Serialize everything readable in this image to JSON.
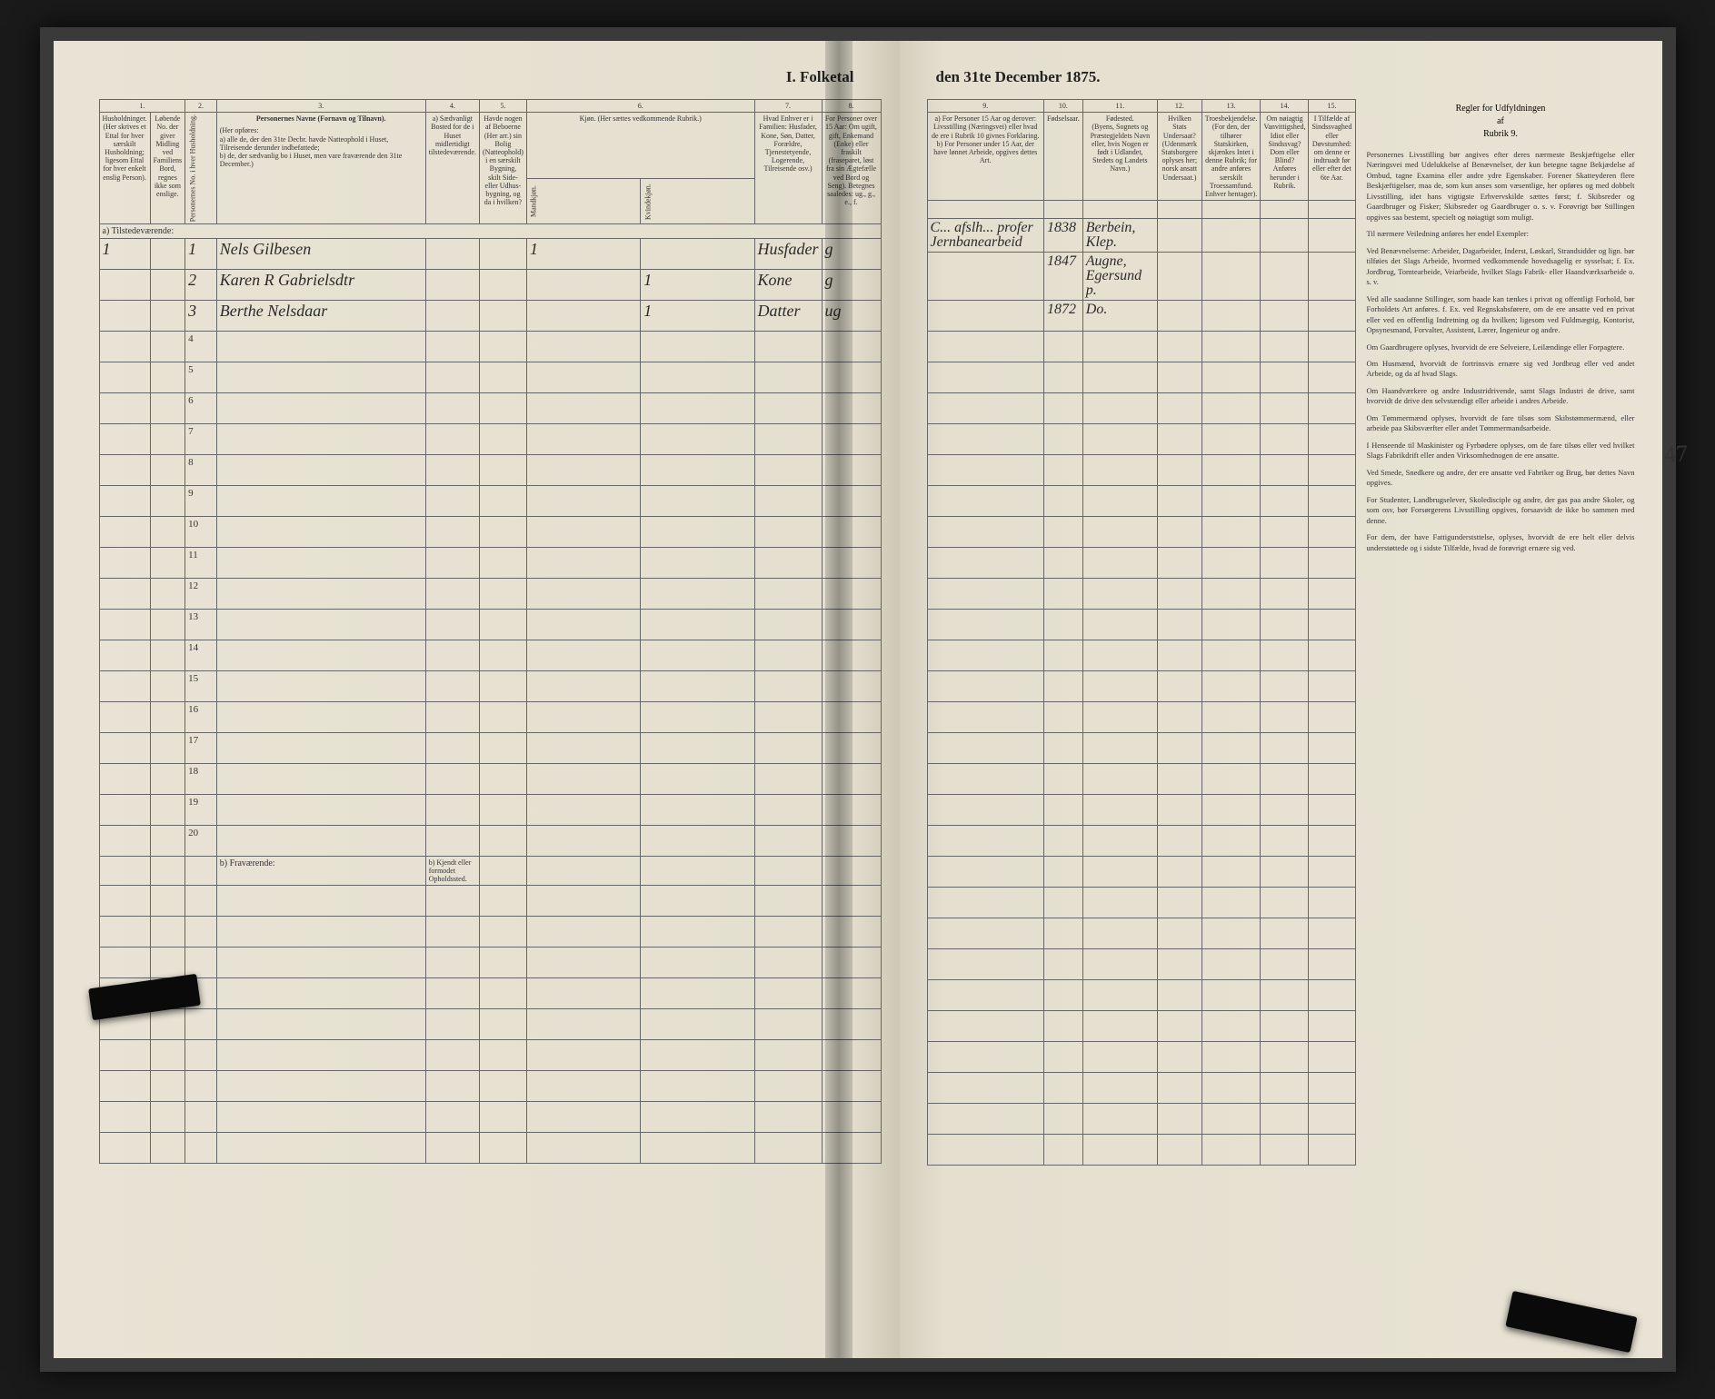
{
  "title_left": "I. Folketal",
  "title_right": "den 31te December 1875.",
  "side_page_number": "47",
  "left": {
    "col_numbers": [
      "1.",
      "2.",
      "3.",
      "4.",
      "5.",
      "6.",
      "7.",
      "8."
    ],
    "headers": {
      "c1": "Husholdninger. (Her skrives et Ettal for hver særskilt Husholdning; ligesom Ettal for hver enkelt enslig Person).",
      "c1b": "Løbende No. der giver Midling ved Familiens Bord, regnes ikke som enslige.",
      "c2": "Personernes No. i hver Husholdning.",
      "c3_title": "Personernes Navne (Fornavn og Tilnavn).",
      "c3_body": "(Her opføres:\na) alle de, der den 31te Decbr. havde Natteophold i Huset, Tilreisende derunder indbefattede;\nb) de, der sædvanlig bo i Huset, men vare fraværende den 31te December.)",
      "c4": "a) Sædvanligt Bosted for de i Huset midlertidigt tilstedeværende.",
      "c4b": "b) Kjendt eller formodet Opholdssted.",
      "c5": "Havde nogen af Beboerne (Her arr.) sin Bolig (Natteophold) i en særskilt Bygning, skilt Side- eller Udhus-bygning, og da i hvilken?",
      "c6": "Kjøn. (Her sættes vedkommende Rubrik.)",
      "c6a": "Mandkjøn.",
      "c6b": "Kvindekjøn.",
      "c7": "Hvad Enhver er i Familien:\nHusfader, Kone, Søn, Datter, Forældre, Tjenestetyende, Logerende, Tilreisende osv.)",
      "c8": "For Personer over 15 Aar:\nOm ugift, gift, Enkemand (Enke) eller fraskilt (fraseparet, løst fra sin Ægtefælle ved Bord og Seng).\nBetegnes saaledes:\nug., g., e., f."
    },
    "section_a": "a) Tilstedeværende:",
    "section_b": "b) Fraværende:",
    "rows": [
      {
        "n": "1",
        "hh": "1",
        "p": "1",
        "name": "Nels Gilbesen",
        "c4": "",
        "c5": "",
        "c6a": "1",
        "c6b": "",
        "c7": "Husfader",
        "c8": "g"
      },
      {
        "n": "",
        "hh": "",
        "p": "2",
        "name": "Karen R Gabrielsdtr",
        "c4": "",
        "c5": "",
        "c6a": "",
        "c6b": "1",
        "c7": "Kone",
        "c8": "g"
      },
      {
        "n": "",
        "hh": "",
        "p": "3",
        "name": "Berthe Nelsdaar",
        "c4": "",
        "c5": "",
        "c6a": "",
        "c6b": "1",
        "c7": "Datter",
        "c8": "ug"
      }
    ],
    "empty_rows_a": [
      "4",
      "5",
      "6",
      "7",
      "8",
      "9",
      "10",
      "11",
      "12",
      "13",
      "14",
      "15",
      "16",
      "17",
      "18",
      "19",
      "20"
    ],
    "empty_rows_b": 9
  },
  "right": {
    "col_numbers": [
      "9.",
      "10.",
      "11.",
      "12.",
      "13.",
      "14.",
      "15."
    ],
    "headers": {
      "c9": "a) For Personer 15 Aar og derover: Livsstilling (Næringsvei) eller hvad de ere i Rubrik 10 givnes Forklaring.\nb) For Personer under 15 Aar, der have lønnet Arbeide, opgives dettes Art.",
      "c10": "Fødselsaar.",
      "c11": "Fødested.\n(Byens, Sognets og Præstegjeldets Navn eller, hvis Nogen er født i Udlandet, Stedets og Landets Navn.)",
      "c12": "Hvilken Stats Undersaat?\n(Udenmærk Statsborgere oplyses her; norsk ansatt Undersaat.)",
      "c13": "Troesbekjendelse.\n(For den, der tilhører Statskirken, skjænkes Intet i denne Rubrik; for andre anføres særskilt Troessamfund. Enhver hentager).",
      "c14": "Om nøiagtig Vanvittigshed, Idiot eller Sindssvag? Dom eller Blind? Anføres herunder i Rubrik.",
      "c15": "I Tilfælde af Sindssvaghed eller Døvstumhed: om denne er indtruadt før eller efter det 6te Aar."
    },
    "rows": [
      {
        "c9": "C... afslh... profer Jernbanearbeid",
        "c10": "1838",
        "c11": "Berbein, Klep.",
        "c12": "",
        "c13": "",
        "c14": "",
        "c15": ""
      },
      {
        "c9": "",
        "c10": "1847",
        "c11": "Augne, Egersund p.",
        "c12": "",
        "c13": "",
        "c14": "",
        "c15": ""
      },
      {
        "c9": "",
        "c10": "1872",
        "c11": "Do.",
        "c12": "",
        "c13": "",
        "c14": "",
        "c15": ""
      }
    ],
    "side": {
      "heading": "Regler for Udfyldningen\naf\nRubrik 9.",
      "paragraphs": [
        "Personernes Livsstilling bør angives efter deres nærmeste Beskjæftigelse eller Næringsvei med Udelukkelse af Benævnelser, der kun betegne tagne Bekjædelse af Ombud, tagne Examina eller andre ydre Egenskaber. Forener Skatteyderen flere Beskjæftigelser, maa de, som kun anses som væsentlige, her opføres og med dobbelt Livsstilling, idet hans vigtigste Erhvervskilde sættes først; f. Skibsreder og Gaardbruger og Fisker; Skibsreder og Gaardbruger o. s. v. Forøvrigt bør Stillingen opgives saa bestemt, specielt og nøiagtigt som muligt.",
        "Til nærmere Veiledning anføres her endel Exempler:",
        "Ved Benævnelserne: Arbeider, Dagarbeider, Inderst, Løskarl, Strandsidder og lign. bør tilføies det Slags Arbeide, hvormed vedkommende hovedsagelig er sysselsat; f. Ex. Jordbrug, Tomtearbeide, Veiarbeide, hvilket Slags Fabrik- eller Haandværksarbeide o. s. v.",
        "Ved alle saadanne Stillinger, som baade kan tænkes i privat og offentligt Forhold, bør Forholdets Art anføres. f. Ex. ved Regnskabsførere, om de ere ansatte ved en privat eller ved en offentlig Indretning og da hvilken; ligesom ved Fuldmægtig, Kontorist, Opsynesmand, Forvalter, Assistent, Lærer, Ingenieur og andre.",
        "Om Gaardbrugere oplyses, hvorvidt de ere Selveiere, Leilændinge eller Forpagtere.",
        "Om Husmænd, hvorvidt de fortrinsvis ernære sig ved Jordbrug eller ved andet Arbeide, og da af hvad Slags.",
        "Om Haandværkere og andre Industridrivende, samt Slags Industri de drive, samt hvorvidt de drive den selvstændigt eller arbeide i andres Arbeide.",
        "Om Tømmermænd oplyses, hvorvidt de fare tilsøs som Skibstømmermænd, eller arbeide paa Skibsværfter eller andet Tømmermandsarbeide.",
        "I Henseende til Maskinister og Fyrbødere oplyses, om de fare tilsøs eller ved hvilket Slags Fabrikdrift eller anden Virksomhednogen de ere ansatte.",
        "Ved Smede, Snedkere og andre, der ere ansatte ved Fabriker og Brug, bør dettes Navn opgives.",
        "For Studenter, Landbrugselever, Skoledisciple og andre, der gas paa andre Skoler, og som osv, bør Forsørgerens Livsstilling opgives, forsaavidt de ikke bo sammen med denne.",
        "For dem, der have Fattigunderststtelse, oplyses, hvorvidt de ere helt eller delvis understøttede og i sidste Tilfælde, hvad de forøvrigt ernære sig ved."
      ]
    }
  },
  "colors": {
    "paper": "#e8e3d4",
    "ink": "#333333",
    "rule": "#666666",
    "handwriting": "#2b2b2b",
    "frame": "#1a1a1a"
  }
}
